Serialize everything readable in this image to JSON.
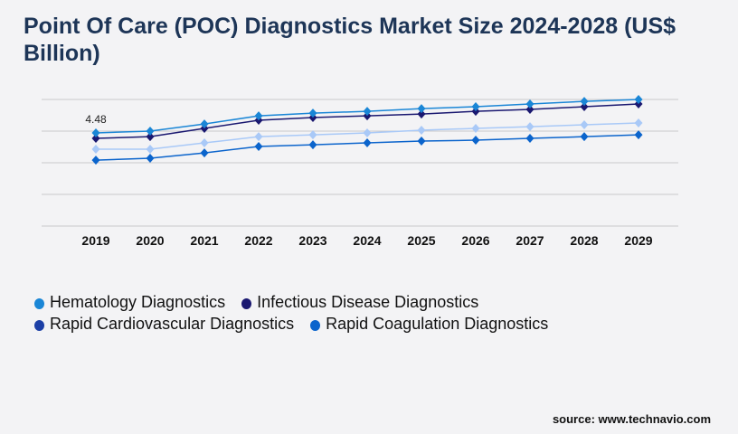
{
  "title": "Point Of Care (POC) Diagnostics Market Size 2024-2028 (US$ Billion)",
  "source": "source: www.technavio.com",
  "chart_data": {
    "type": "line",
    "title": "Point Of Care (POC) Diagnostics Market Size 2024-2028 (US$ Billion)",
    "x": [
      "2019",
      "2020",
      "2021",
      "2022",
      "2023",
      "2024",
      "2025",
      "2026",
      "2027",
      "2028",
      "2029"
    ],
    "ylim": [
      0,
      6.09
    ],
    "grid": true,
    "legend_placement": "bottom",
    "annotations": [
      {
        "series": 0,
        "x": "2019",
        "text": "4.48"
      }
    ],
    "series": [
      {
        "name": "Hematology Diagnostics",
        "color": "#1a86d6",
        "values": [
          4.48,
          4.57,
          4.91,
          5.3,
          5.43,
          5.52,
          5.65,
          5.74,
          5.87,
          6.0,
          6.09
        ]
      },
      {
        "name": "Infectious Disease Diagnostics",
        "color": "#1a1870",
        "values": [
          4.22,
          4.3,
          4.7,
          5.09,
          5.22,
          5.3,
          5.39,
          5.52,
          5.61,
          5.74,
          5.87
        ]
      },
      {
        "name": "Rapid Cardiovascular Diagnostics",
        "color": "#a9c9f7",
        "legend_color": "#1c3fa6",
        "values": [
          3.7,
          3.7,
          4.0,
          4.3,
          4.39,
          4.48,
          4.61,
          4.7,
          4.78,
          4.87,
          4.96
        ]
      },
      {
        "name": "Rapid Coagulation Diagnostics",
        "color": "#0b64cc",
        "values": [
          3.17,
          3.26,
          3.52,
          3.83,
          3.91,
          4.0,
          4.09,
          4.13,
          4.22,
          4.3,
          4.39
        ]
      }
    ]
  }
}
